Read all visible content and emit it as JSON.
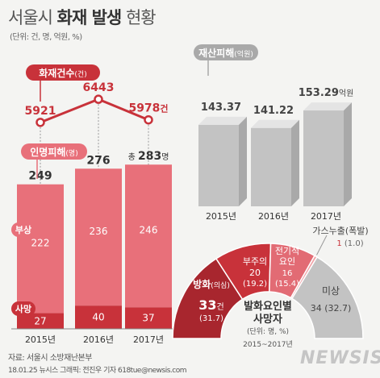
{
  "header": {
    "title_light": "서울시",
    "title_bold": "화재 발생",
    "title_tail": "현황",
    "unit_note": "(단위: 건, 명, 억원, %)"
  },
  "footer": {
    "source": "자료: 서울시 소방재난본부",
    "credit": "18.01.25 뉴시스 그래픽: 전진우 기자 618tue@newsis.com",
    "logo": "NEWSIS"
  },
  "colors": {
    "accent": "#c8323a",
    "injury": "#e8707a",
    "death": "#c8323a",
    "property": "#c3c3c3",
    "line": "#c8323a"
  },
  "chart_data": [
    {
      "type": "line",
      "label_main": "화재건수",
      "label_unit": "(건)",
      "categories": [
        "2015년",
        "2016년",
        "2017년"
      ],
      "values": [
        5921,
        6443,
        5978
      ],
      "value_labels": [
        "5921",
        "6443",
        "5978건"
      ]
    },
    {
      "type": "bar",
      "stacked": true,
      "label_main": "인명피해",
      "label_unit": "(명)",
      "categories": [
        "2015년",
        "2016년",
        "2017년"
      ],
      "series": [
        {
          "name": "부상",
          "values": [
            222,
            236,
            246
          ]
        },
        {
          "name": "사망",
          "values": [
            27,
            40,
            37
          ]
        }
      ],
      "totals": [
        249,
        276,
        283
      ],
      "total_labels": [
        "249",
        "276",
        "283"
      ],
      "total_prefix": "총",
      "total_suffix": "명"
    },
    {
      "type": "bar",
      "label_main": "재산피해",
      "label_unit": "(억원)",
      "categories": [
        "2015년",
        "2016년",
        "2017년"
      ],
      "values": [
        143.37,
        141.22,
        153.29
      ],
      "value_labels": [
        "143.37",
        "141.22",
        "153.29"
      ],
      "last_suffix": "억원"
    },
    {
      "type": "pie",
      "shape": "half-donut",
      "title_line1": "발화요인별",
      "title_line2": "사망자",
      "unit_note": "(단위: 명, %)",
      "period": "2015~2017년",
      "slices": [
        {
          "name": "방화",
          "name_sub": "(의심)",
          "value": 33,
          "pct": 31.7,
          "value_label": "33",
          "value_unit": "건",
          "pct_label": "(31.7)",
          "color": "#a8262e"
        },
        {
          "name": "부주의",
          "value": 20,
          "pct": 19.2,
          "value_label": "20",
          "pct_label": "(19.2)",
          "color": "#c8323a"
        },
        {
          "name": "전기적요인",
          "name_line1": "전기적",
          "name_line2": "요인",
          "value": 16,
          "pct": 15.4,
          "value_label": "16",
          "pct_label": "(15.4)",
          "color": "#e26b74"
        },
        {
          "name": "가스누출(폭발)",
          "value": 1,
          "pct": 1.0,
          "value_label": "1",
          "pct_label": "(1.0)",
          "color": "#f0a4a8"
        },
        {
          "name": "미상",
          "value": 34,
          "pct": 32.7,
          "value_label": "34",
          "pct_label": "(32.7)",
          "color": "#c3c3c3"
        }
      ]
    }
  ]
}
